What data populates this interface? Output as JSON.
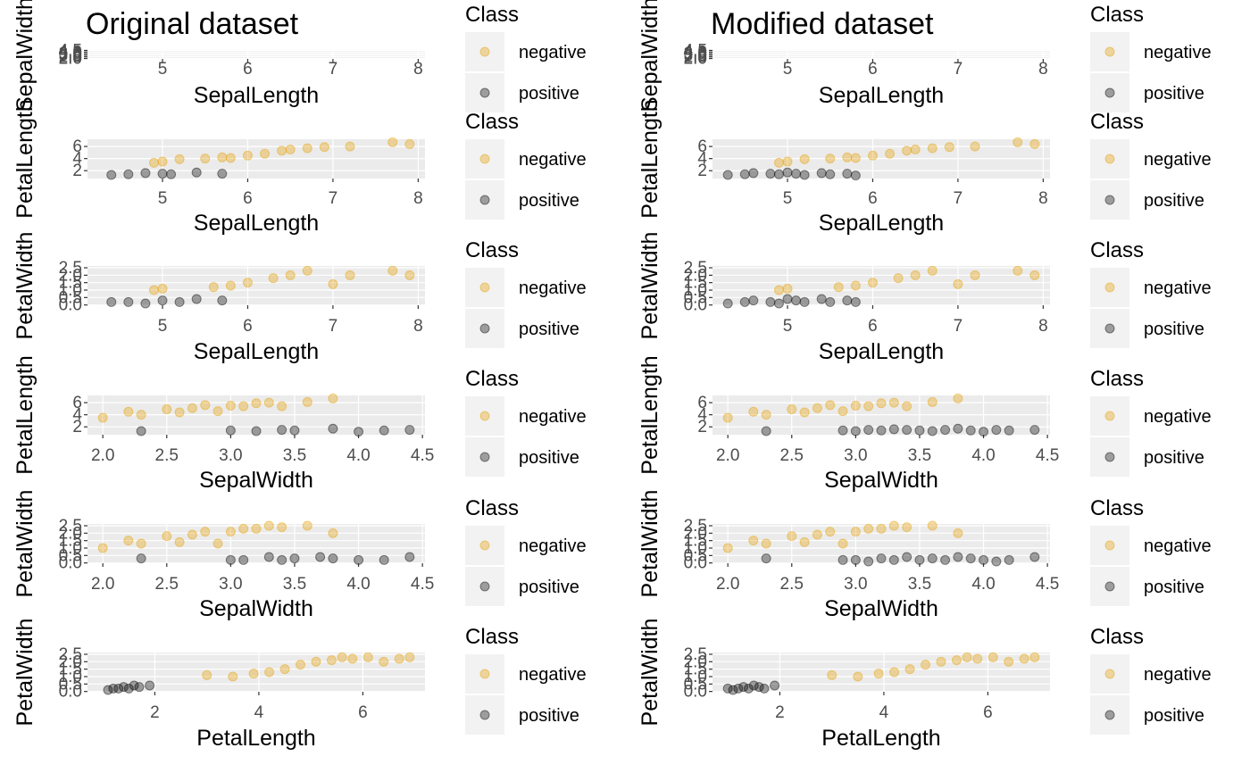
{
  "colors": {
    "negative": "#E69F00",
    "positive": "#000000",
    "panel": "#EBEBEB",
    "grid": "#FFFFFF",
    "key_bg": "#F2F2F2",
    "axis_text": "#4D4D4D"
  },
  "legend": {
    "title": "Class",
    "labels": [
      "negative",
      "positive"
    ]
  },
  "titles": [
    "Original dataset",
    "Modified dataset"
  ],
  "chart_data": [
    {
      "type": "scatter",
      "column": 0,
      "row": 0,
      "title": "Original dataset",
      "xlabel": "SepalLength",
      "ylabel": "SepalWidth",
      "xlim": [
        4.3,
        7.9
      ],
      "ylim": [
        2.0,
        4.5
      ],
      "xticks": [
        5,
        6,
        7,
        8
      ],
      "yticks": [
        "2.0",
        "2.5",
        "3.0",
        "3.5",
        "4.0",
        "4.5"
      ],
      "series": []
    },
    {
      "type": "scatter",
      "column": 0,
      "row": 1,
      "xlabel": "SepalLength",
      "ylabel": "PetalLength",
      "xlim": [
        4.3,
        7.9
      ],
      "ylim": [
        1,
        6.9
      ],
      "xticks": [
        5,
        6,
        7,
        8
      ],
      "yticks": [
        "2",
        "4",
        "6"
      ],
      "series": [
        {
          "name": "negative",
          "x": [
            4.9,
            5.0,
            5.2,
            5.5,
            5.7,
            5.8,
            6.0,
            6.2,
            6.4,
            6.5,
            6.7,
            6.9,
            7.2,
            7.7,
            7.9
          ],
          "y": [
            3.3,
            3.5,
            3.9,
            4.0,
            4.2,
            4.1,
            4.5,
            4.8,
            5.3,
            5.5,
            5.7,
            5.9,
            6.0,
            6.7,
            6.4
          ]
        },
        {
          "name": "positive",
          "x": [
            4.4,
            4.6,
            4.8,
            5.0,
            5.1,
            5.4,
            5.7
          ],
          "y": [
            1.3,
            1.4,
            1.6,
            1.5,
            1.4,
            1.7,
            1.5
          ]
        }
      ]
    },
    {
      "type": "scatter",
      "column": 0,
      "row": 2,
      "xlabel": "SepalLength",
      "ylabel": "PetalWidth",
      "xlim": [
        4.3,
        7.9
      ],
      "ylim": [
        0.1,
        2.5
      ],
      "xticks": [
        5,
        6,
        7,
        8
      ],
      "yticks": [
        "0.0",
        "0.5",
        "1.0",
        "1.5",
        "2.0",
        "2.5"
      ],
      "series": [
        {
          "name": "negative",
          "x": [
            4.9,
            5.0,
            5.6,
            5.8,
            6.0,
            6.3,
            6.5,
            6.7,
            7.0,
            7.2,
            7.7,
            7.9
          ],
          "y": [
            1.0,
            1.1,
            1.2,
            1.3,
            1.5,
            1.8,
            2.0,
            2.3,
            1.4,
            2.0,
            2.3,
            2.0
          ]
        },
        {
          "name": "positive",
          "x": [
            4.4,
            4.6,
            4.8,
            5.0,
            5.2,
            5.4,
            5.7
          ],
          "y": [
            0.2,
            0.2,
            0.1,
            0.3,
            0.2,
            0.4,
            0.3
          ]
        }
      ]
    },
    {
      "type": "scatter",
      "column": 0,
      "row": 3,
      "xlabel": "SepalWidth",
      "ylabel": "PetalLength",
      "xlim": [
        2.0,
        4.4
      ],
      "ylim": [
        1,
        6.9
      ],
      "xticks": [
        "2.0",
        "2.5",
        "3.0",
        "3.5",
        "4.0",
        "4.5"
      ],
      "yticks": [
        "2",
        "4",
        "6"
      ],
      "series": [
        {
          "name": "negative",
          "x": [
            2.0,
            2.2,
            2.3,
            2.5,
            2.6,
            2.7,
            2.8,
            2.9,
            3.0,
            3.1,
            3.2,
            3.3,
            3.4,
            3.6,
            3.8
          ],
          "y": [
            3.5,
            4.5,
            4.0,
            4.9,
            4.4,
            5.1,
            5.6,
            4.6,
            5.5,
            5.4,
            5.9,
            6.0,
            5.4,
            6.1,
            6.7
          ]
        },
        {
          "name": "positive",
          "x": [
            2.3,
            3.0,
            3.2,
            3.4,
            3.5,
            3.8,
            4.0,
            4.2,
            4.4
          ],
          "y": [
            1.3,
            1.4,
            1.3,
            1.5,
            1.4,
            1.7,
            1.2,
            1.4,
            1.5
          ]
        }
      ]
    },
    {
      "type": "scatter",
      "column": 0,
      "row": 4,
      "xlabel": "SepalWidth",
      "ylabel": "PetalWidth",
      "xlim": [
        2.0,
        4.4
      ],
      "ylim": [
        0.1,
        2.5
      ],
      "xticks": [
        "2.0",
        "2.5",
        "3.0",
        "3.5",
        "4.0",
        "4.5"
      ],
      "yticks": [
        "0.0",
        "0.5",
        "1.0",
        "1.5",
        "2.0",
        "2.5"
      ],
      "series": [
        {
          "name": "negative",
          "x": [
            2.0,
            2.2,
            2.3,
            2.5,
            2.6,
            2.7,
            2.8,
            2.9,
            3.0,
            3.1,
            3.2,
            3.3,
            3.4,
            3.6,
            3.8
          ],
          "y": [
            1.0,
            1.5,
            1.3,
            1.8,
            1.4,
            1.9,
            2.1,
            1.3,
            2.1,
            2.3,
            2.3,
            2.5,
            2.4,
            2.5,
            2.0
          ]
        },
        {
          "name": "positive",
          "x": [
            2.3,
            3.0,
            3.1,
            3.3,
            3.4,
            3.5,
            3.7,
            3.8,
            4.0,
            4.2,
            4.4
          ],
          "y": [
            0.3,
            0.2,
            0.2,
            0.4,
            0.2,
            0.3,
            0.4,
            0.3,
            0.2,
            0.2,
            0.4
          ]
        }
      ]
    },
    {
      "type": "scatter",
      "column": 0,
      "row": 5,
      "xlabel": "PetalLength",
      "ylabel": "PetalWidth",
      "xlim": [
        1,
        6.9
      ],
      "ylim": [
        0.1,
        2.5
      ],
      "xticks": [
        2,
        4,
        6
      ],
      "yticks": [
        "0.0",
        "0.5",
        "1.0",
        "1.5",
        "2.0",
        "2.5"
      ],
      "series": [
        {
          "name": "negative",
          "x": [
            3.0,
            3.5,
            3.9,
            4.2,
            4.5,
            4.8,
            5.1,
            5.4,
            5.6,
            5.8,
            6.1,
            6.4,
            6.7,
            6.9
          ],
          "y": [
            1.1,
            1.0,
            1.2,
            1.3,
            1.5,
            1.8,
            2.0,
            2.1,
            2.3,
            2.2,
            2.3,
            2.0,
            2.2,
            2.3
          ]
        },
        {
          "name": "positive",
          "x": [
            1.1,
            1.2,
            1.3,
            1.4,
            1.5,
            1.6,
            1.7,
            1.9
          ],
          "y": [
            0.1,
            0.2,
            0.2,
            0.3,
            0.2,
            0.4,
            0.3,
            0.4
          ]
        }
      ]
    },
    {
      "type": "scatter",
      "column": 1,
      "row": 0,
      "title": "Modified dataset",
      "xlabel": "SepalLength",
      "ylabel": "SepalWidth",
      "xlim": [
        4.3,
        7.9
      ],
      "ylim": [
        2.0,
        4.5
      ],
      "xticks": [
        5,
        6,
        7,
        8
      ],
      "yticks": [
        "2.0",
        "2.5",
        "3.0",
        "3.5",
        "4.0",
        "4.5"
      ],
      "series": []
    },
    {
      "type": "scatter",
      "column": 1,
      "row": 1,
      "xlabel": "SepalLength",
      "ylabel": "PetalLength",
      "xlim": [
        4.3,
        7.9
      ],
      "ylim": [
        1,
        6.9
      ],
      "xticks": [
        5,
        6,
        7,
        8
      ],
      "yticks": [
        "2",
        "4",
        "6"
      ],
      "series": [
        {
          "name": "negative",
          "x": [
            4.9,
            5.0,
            5.2,
            5.5,
            5.7,
            5.8,
            6.0,
            6.2,
            6.4,
            6.5,
            6.7,
            6.9,
            7.2,
            7.7,
            7.9
          ],
          "y": [
            3.3,
            3.5,
            3.9,
            4.0,
            4.2,
            4.1,
            4.5,
            4.8,
            5.3,
            5.5,
            5.7,
            5.9,
            6.0,
            6.7,
            6.4
          ]
        },
        {
          "name": "positive",
          "x": [
            4.3,
            4.5,
            4.6,
            4.8,
            4.9,
            5.0,
            5.1,
            5.2,
            5.4,
            5.5,
            5.7,
            5.8
          ],
          "y": [
            1.3,
            1.4,
            1.6,
            1.5,
            1.4,
            1.7,
            1.5,
            1.3,
            1.6,
            1.4,
            1.5,
            1.2
          ]
        }
      ]
    },
    {
      "type": "scatter",
      "column": 1,
      "row": 2,
      "xlabel": "SepalLength",
      "ylabel": "PetalWidth",
      "xlim": [
        4.3,
        7.9
      ],
      "ylim": [
        0.1,
        2.5
      ],
      "xticks": [
        5,
        6,
        7,
        8
      ],
      "yticks": [
        "0.0",
        "0.5",
        "1.0",
        "1.5",
        "2.0",
        "2.5"
      ],
      "series": [
        {
          "name": "negative",
          "x": [
            4.9,
            5.0,
            5.6,
            5.8,
            6.0,
            6.3,
            6.5,
            6.7,
            7.0,
            7.2,
            7.7,
            7.9
          ],
          "y": [
            1.0,
            1.1,
            1.2,
            1.3,
            1.5,
            1.8,
            2.0,
            2.3,
            1.4,
            2.0,
            2.3,
            2.0
          ]
        },
        {
          "name": "positive",
          "x": [
            4.3,
            4.5,
            4.6,
            4.8,
            4.9,
            5.0,
            5.1,
            5.2,
            5.4,
            5.5,
            5.7,
            5.8
          ],
          "y": [
            0.1,
            0.2,
            0.3,
            0.2,
            0.1,
            0.4,
            0.3,
            0.2,
            0.4,
            0.2,
            0.3,
            0.2
          ]
        }
      ]
    },
    {
      "type": "scatter",
      "column": 1,
      "row": 3,
      "xlabel": "SepalWidth",
      "ylabel": "PetalLength",
      "xlim": [
        2.0,
        4.4
      ],
      "ylim": [
        1,
        6.9
      ],
      "xticks": [
        "2.0",
        "2.5",
        "3.0",
        "3.5",
        "4.0",
        "4.5"
      ],
      "yticks": [
        "2",
        "4",
        "6"
      ],
      "series": [
        {
          "name": "negative",
          "x": [
            2.0,
            2.2,
            2.3,
            2.5,
            2.6,
            2.7,
            2.8,
            2.9,
            3.0,
            3.1,
            3.2,
            3.3,
            3.4,
            3.6,
            3.8
          ],
          "y": [
            3.5,
            4.5,
            4.0,
            4.9,
            4.4,
            5.1,
            5.6,
            4.6,
            5.5,
            5.4,
            5.9,
            6.0,
            5.4,
            6.1,
            6.7
          ]
        },
        {
          "name": "positive",
          "x": [
            2.3,
            2.9,
            3.0,
            3.1,
            3.2,
            3.3,
            3.4,
            3.5,
            3.6,
            3.7,
            3.8,
            3.9,
            4.0,
            4.1,
            4.2,
            4.4
          ],
          "y": [
            1.3,
            1.4,
            1.3,
            1.5,
            1.4,
            1.6,
            1.5,
            1.4,
            1.3,
            1.5,
            1.7,
            1.4,
            1.2,
            1.5,
            1.4,
            1.5
          ]
        }
      ]
    },
    {
      "type": "scatter",
      "column": 1,
      "row": 4,
      "xlabel": "SepalWidth",
      "ylabel": "PetalWidth",
      "xlim": [
        2.0,
        4.4
      ],
      "ylim": [
        0.1,
        2.5
      ],
      "xticks": [
        "2.0",
        "2.5",
        "3.0",
        "3.5",
        "4.0",
        "4.5"
      ],
      "yticks": [
        "0.0",
        "0.5",
        "1.0",
        "1.5",
        "2.0",
        "2.5"
      ],
      "series": [
        {
          "name": "negative",
          "x": [
            2.0,
            2.2,
            2.3,
            2.5,
            2.6,
            2.7,
            2.8,
            2.9,
            3.0,
            3.1,
            3.2,
            3.3,
            3.4,
            3.6,
            3.8
          ],
          "y": [
            1.0,
            1.5,
            1.3,
            1.8,
            1.4,
            1.9,
            2.1,
            1.3,
            2.1,
            2.3,
            2.3,
            2.5,
            2.4,
            2.5,
            2.0
          ]
        },
        {
          "name": "positive",
          "x": [
            2.3,
            2.9,
            3.0,
            3.1,
            3.2,
            3.3,
            3.4,
            3.5,
            3.6,
            3.7,
            3.8,
            3.9,
            4.0,
            4.1,
            4.2,
            4.4
          ],
          "y": [
            0.3,
            0.2,
            0.2,
            0.1,
            0.3,
            0.2,
            0.4,
            0.2,
            0.3,
            0.2,
            0.4,
            0.3,
            0.2,
            0.1,
            0.2,
            0.4
          ]
        }
      ]
    },
    {
      "type": "scatter",
      "column": 1,
      "row": 5,
      "xlabel": "PetalLength",
      "ylabel": "PetalWidth",
      "xlim": [
        1,
        6.9
      ],
      "ylim": [
        0.1,
        2.5
      ],
      "xticks": [
        2,
        4,
        6
      ],
      "yticks": [
        "0.0",
        "0.5",
        "1.0",
        "1.5",
        "2.0",
        "2.5"
      ],
      "series": [
        {
          "name": "negative",
          "x": [
            3.0,
            3.5,
            3.9,
            4.2,
            4.5,
            4.8,
            5.1,
            5.4,
            5.6,
            5.8,
            6.1,
            6.4,
            6.7,
            6.9
          ],
          "y": [
            1.1,
            1.0,
            1.2,
            1.3,
            1.5,
            1.8,
            2.0,
            2.1,
            2.3,
            2.2,
            2.3,
            2.0,
            2.2,
            2.3
          ]
        },
        {
          "name": "positive",
          "x": [
            1.0,
            1.1,
            1.2,
            1.3,
            1.4,
            1.5,
            1.6,
            1.7,
            1.9
          ],
          "y": [
            0.2,
            0.1,
            0.2,
            0.3,
            0.2,
            0.4,
            0.3,
            0.2,
            0.4
          ]
        }
      ]
    }
  ]
}
